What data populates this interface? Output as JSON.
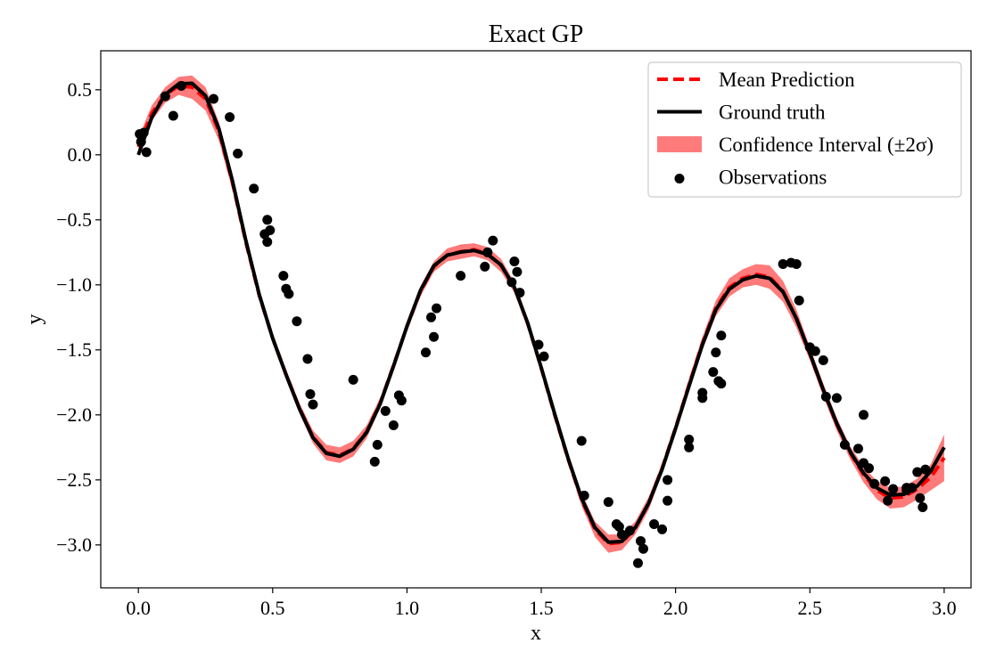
{
  "chart_data": {
    "type": "line",
    "title": "Exact GP",
    "xlabel": "x",
    "ylabel": "y",
    "xlim": [
      -0.14,
      3.1
    ],
    "ylim": [
      -3.33,
      0.8
    ],
    "xticks": [
      0.0,
      0.5,
      1.0,
      1.5,
      2.0,
      2.5,
      3.0
    ],
    "xtick_labels": [
      "0.0",
      "0.5",
      "1.0",
      "1.5",
      "2.0",
      "2.5",
      "3.0"
    ],
    "yticks": [
      0.5,
      0.0,
      -0.5,
      -1.0,
      -1.5,
      -2.0,
      -2.5,
      -3.0
    ],
    "ytick_labels": [
      "0.5",
      "0.0",
      "−0.5",
      "−1.0",
      "−1.5",
      "−2.0",
      "−2.5",
      "−3.0"
    ],
    "grid": false,
    "legend_position": "top-right",
    "legend": [
      {
        "label": "Mean Prediction",
        "kind": "dashed-line",
        "color": "#ff0000"
      },
      {
        "label": "Ground truth",
        "kind": "line",
        "color": "#000000"
      },
      {
        "label": "Confidence Interval (±2σ)",
        "kind": "patch",
        "color": "#ff6b6b"
      },
      {
        "label": "Observations",
        "kind": "marker",
        "color": "#000000"
      }
    ],
    "ground_truth": {
      "name": "Ground truth",
      "color": "#000000",
      "x": [
        0.0,
        0.05,
        0.1,
        0.15,
        0.2,
        0.25,
        0.3,
        0.35,
        0.4,
        0.45,
        0.5,
        0.55,
        0.6,
        0.65,
        0.7,
        0.75,
        0.8,
        0.85,
        0.9,
        0.95,
        1.0,
        1.05,
        1.1,
        1.15,
        1.2,
        1.25,
        1.3,
        1.35,
        1.4,
        1.45,
        1.5,
        1.55,
        1.6,
        1.65,
        1.7,
        1.75,
        1.8,
        1.85,
        1.9,
        1.95,
        2.0,
        2.05,
        2.1,
        2.15,
        2.2,
        2.25,
        2.3,
        2.35,
        2.4,
        2.45,
        2.5,
        2.55,
        2.6,
        2.65,
        2.7,
        2.75,
        2.8,
        2.85,
        2.9,
        2.95,
        3.0
      ],
      "y": [
        0.0,
        0.287,
        0.464,
        0.545,
        0.55,
        0.454,
        0.201,
        -0.197,
        -0.658,
        -1.074,
        -1.411,
        -1.692,
        -1.955,
        -2.175,
        -2.296,
        -2.318,
        -2.264,
        -2.135,
        -1.917,
        -1.625,
        -1.318,
        -1.044,
        -0.854,
        -0.772,
        -0.748,
        -0.736,
        -0.766,
        -0.846,
        -1.019,
        -1.296,
        -1.637,
        -1.992,
        -2.334,
        -2.64,
        -2.867,
        -2.979,
        -2.973,
        -2.867,
        -2.679,
        -2.418,
        -2.106,
        -1.78,
        -1.461,
        -1.191,
        -1.034,
        -0.962,
        -0.931,
        -0.95,
        -1.054,
        -1.26,
        -1.526,
        -1.807,
        -2.065,
        -2.282,
        -2.448,
        -2.562,
        -2.617,
        -2.611,
        -2.547,
        -2.433,
        -2.25
      ]
    },
    "mean_prediction": {
      "name": "Mean Prediction",
      "color": "#ff0000",
      "x": [
        0.0,
        0.05,
        0.1,
        0.15,
        0.2,
        0.25,
        0.3,
        0.35,
        0.4,
        0.45,
        0.5,
        0.55,
        0.6,
        0.65,
        0.7,
        0.75,
        0.8,
        0.85,
        0.9,
        0.95,
        1.0,
        1.05,
        1.1,
        1.15,
        1.2,
        1.25,
        1.3,
        1.35,
        1.4,
        1.45,
        1.5,
        1.55,
        1.6,
        1.65,
        1.7,
        1.75,
        1.8,
        1.85,
        1.9,
        1.95,
        2.0,
        2.05,
        2.1,
        2.15,
        2.2,
        2.25,
        2.3,
        2.35,
        2.4,
        2.45,
        2.5,
        2.55,
        2.6,
        2.65,
        2.7,
        2.75,
        2.8,
        2.85,
        2.9,
        2.95,
        3.0
      ],
      "y": [
        0.06,
        0.32,
        0.46,
        0.53,
        0.52,
        0.43,
        0.18,
        -0.21,
        -0.67,
        -1.08,
        -1.41,
        -1.69,
        -1.95,
        -2.17,
        -2.29,
        -2.31,
        -2.26,
        -2.13,
        -1.91,
        -1.62,
        -1.32,
        -1.05,
        -0.86,
        -0.77,
        -0.745,
        -0.73,
        -0.76,
        -0.85,
        -1.02,
        -1.3,
        -1.64,
        -2.0,
        -2.34,
        -2.65,
        -2.88,
        -2.99,
        -2.98,
        -2.87,
        -2.68,
        -2.41,
        -2.1,
        -1.77,
        -1.45,
        -1.18,
        -1.02,
        -0.95,
        -0.92,
        -0.94,
        -1.05,
        -1.26,
        -1.53,
        -1.81,
        -2.07,
        -2.29,
        -2.46,
        -2.58,
        -2.64,
        -2.63,
        -2.57,
        -2.48,
        -2.33
      ]
    },
    "confidence_interval": {
      "name": "Confidence Interval (±2σ)",
      "color": "#ff6b6b",
      "x": [
        0.0,
        0.05,
        0.1,
        0.15,
        0.2,
        0.25,
        0.3,
        0.35,
        0.4,
        0.45,
        0.5,
        0.55,
        0.6,
        0.65,
        0.7,
        0.75,
        0.8,
        0.85,
        0.9,
        0.95,
        1.0,
        1.05,
        1.1,
        1.15,
        1.2,
        1.25,
        1.3,
        1.35,
        1.4,
        1.45,
        1.5,
        1.55,
        1.6,
        1.65,
        1.7,
        1.75,
        1.8,
        1.85,
        1.9,
        1.95,
        2.0,
        2.05,
        2.1,
        2.15,
        2.2,
        2.25,
        2.3,
        2.35,
        2.4,
        2.45,
        2.5,
        2.55,
        2.6,
        2.65,
        2.7,
        2.75,
        2.8,
        2.85,
        2.9,
        2.95,
        3.0
      ],
      "upper": [
        0.13,
        0.38,
        0.52,
        0.6,
        0.61,
        0.52,
        0.25,
        -0.15,
        -0.62,
        -1.04,
        -1.37,
        -1.65,
        -1.91,
        -2.12,
        -2.23,
        -2.25,
        -2.2,
        -2.08,
        -1.87,
        -1.58,
        -1.28,
        -1.01,
        -0.82,
        -0.72,
        -0.69,
        -0.68,
        -0.71,
        -0.8,
        -0.98,
        -1.26,
        -1.6,
        -1.96,
        -2.3,
        -2.6,
        -2.82,
        -2.92,
        -2.92,
        -2.82,
        -2.63,
        -2.37,
        -2.06,
        -1.72,
        -1.4,
        -1.12,
        -0.95,
        -0.88,
        -0.84,
        -0.85,
        -0.97,
        -1.19,
        -1.48,
        -1.76,
        -2.02,
        -2.24,
        -2.4,
        -2.51,
        -2.56,
        -2.55,
        -2.49,
        -2.38,
        -2.15
      ],
      "lower": [
        -0.01,
        0.26,
        0.4,
        0.46,
        0.43,
        0.34,
        0.11,
        -0.27,
        -0.72,
        -1.12,
        -1.45,
        -1.73,
        -1.99,
        -2.22,
        -2.35,
        -2.37,
        -2.32,
        -2.18,
        -1.95,
        -1.66,
        -1.36,
        -1.09,
        -0.9,
        -0.82,
        -0.8,
        -0.78,
        -0.81,
        -0.9,
        -1.06,
        -1.34,
        -1.68,
        -2.04,
        -2.38,
        -2.7,
        -2.94,
        -3.06,
        -3.04,
        -2.92,
        -2.73,
        -2.45,
        -2.14,
        -1.82,
        -1.5,
        -1.24,
        -1.09,
        -1.02,
        -1.0,
        -1.03,
        -1.13,
        -1.33,
        -1.58,
        -1.86,
        -2.12,
        -2.34,
        -2.52,
        -2.65,
        -2.72,
        -2.71,
        -2.65,
        -2.58,
        -2.51
      ]
    },
    "observations": {
      "name": "Observations",
      "color": "#000000",
      "x": [
        0.005,
        0.01,
        0.02,
        0.03,
        0.1,
        0.13,
        0.16,
        0.28,
        0.34,
        0.37,
        0.43,
        0.47,
        0.48,
        0.48,
        0.49,
        0.54,
        0.55,
        0.56,
        0.59,
        0.63,
        0.64,
        0.65,
        0.8,
        0.88,
        0.89,
        0.92,
        0.95,
        0.97,
        0.98,
        1.07,
        1.09,
        1.1,
        1.11,
        1.2,
        1.29,
        1.3,
        1.32,
        1.39,
        1.4,
        1.41,
        1.42,
        1.49,
        1.51,
        1.65,
        1.66,
        1.75,
        1.78,
        1.79,
        1.8,
        1.83,
        1.86,
        1.87,
        1.88,
        1.92,
        1.95,
        1.97,
        1.97,
        2.05,
        2.05,
        2.1,
        2.1,
        2.14,
        2.15,
        2.16,
        2.17,
        2.17,
        2.4,
        2.43,
        2.45,
        2.46,
        2.5,
        2.52,
        2.55,
        2.56,
        2.6,
        2.63,
        2.68,
        2.7,
        2.7,
        2.72,
        2.74,
        2.78,
        2.79,
        2.81,
        2.86,
        2.86,
        2.88,
        2.9,
        2.91,
        2.92,
        2.93
      ],
      "y": [
        0.16,
        0.1,
        0.17,
        0.02,
        0.45,
        0.3,
        0.53,
        0.43,
        0.29,
        0.01,
        -0.26,
        -0.61,
        -0.67,
        -0.5,
        -0.58,
        -0.93,
        -1.03,
        -1.07,
        -1.28,
        -1.57,
        -1.84,
        -1.92,
        -1.73,
        -2.36,
        -2.23,
        -1.97,
        -2.08,
        -1.85,
        -1.89,
        -1.52,
        -1.25,
        -1.4,
        -1.18,
        -0.93,
        -0.86,
        -0.75,
        -0.66,
        -0.98,
        -0.82,
        -0.9,
        -1.06,
        -1.46,
        -1.55,
        -2.2,
        -2.62,
        -2.67,
        -2.84,
        -2.86,
        -2.92,
        -2.89,
        -3.14,
        -2.97,
        -3.03,
        -2.84,
        -2.88,
        -2.66,
        -2.5,
        -2.19,
        -2.25,
        -1.87,
        -1.83,
        -1.67,
        -1.52,
        -1.74,
        -1.76,
        -1.39,
        -0.84,
        -0.83,
        -0.84,
        -1.12,
        -1.48,
        -1.51,
        -1.58,
        -1.86,
        -1.87,
        -2.23,
        -2.26,
        -2.0,
        -2.37,
        -2.41,
        -2.53,
        -2.51,
        -2.66,
        -2.57,
        -2.58,
        -2.56,
        -2.56,
        -2.44,
        -2.64,
        -2.71,
        -2.42
      ]
    }
  }
}
